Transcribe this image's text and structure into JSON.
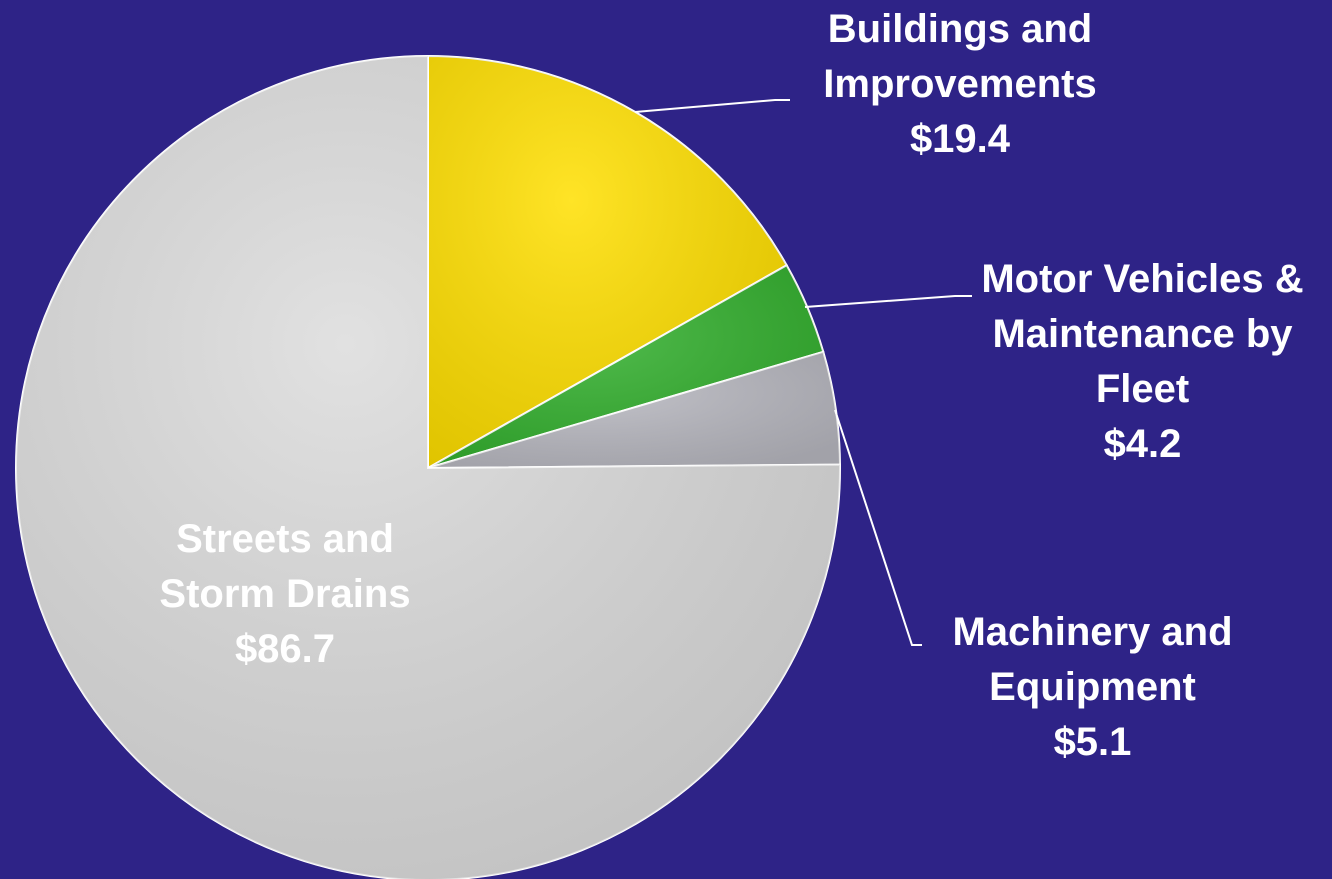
{
  "chart_data": {
    "type": "pie",
    "categories": [
      "Buildings and Improvements",
      "Motor Vehicles & Maintenance by Fleet",
      "Machinery and Equipment",
      "Streets and Storm Drains"
    ],
    "values": [
      19.4,
      4.2,
      5.1,
      86.7
    ],
    "value_labels": [
      "$19.4",
      "$4.2",
      "$5.1",
      "$86.7"
    ],
    "colors": [
      "#ffdf00",
      "#33b02e",
      "#b8b8c0",
      "#dcdcdc"
    ]
  }
}
